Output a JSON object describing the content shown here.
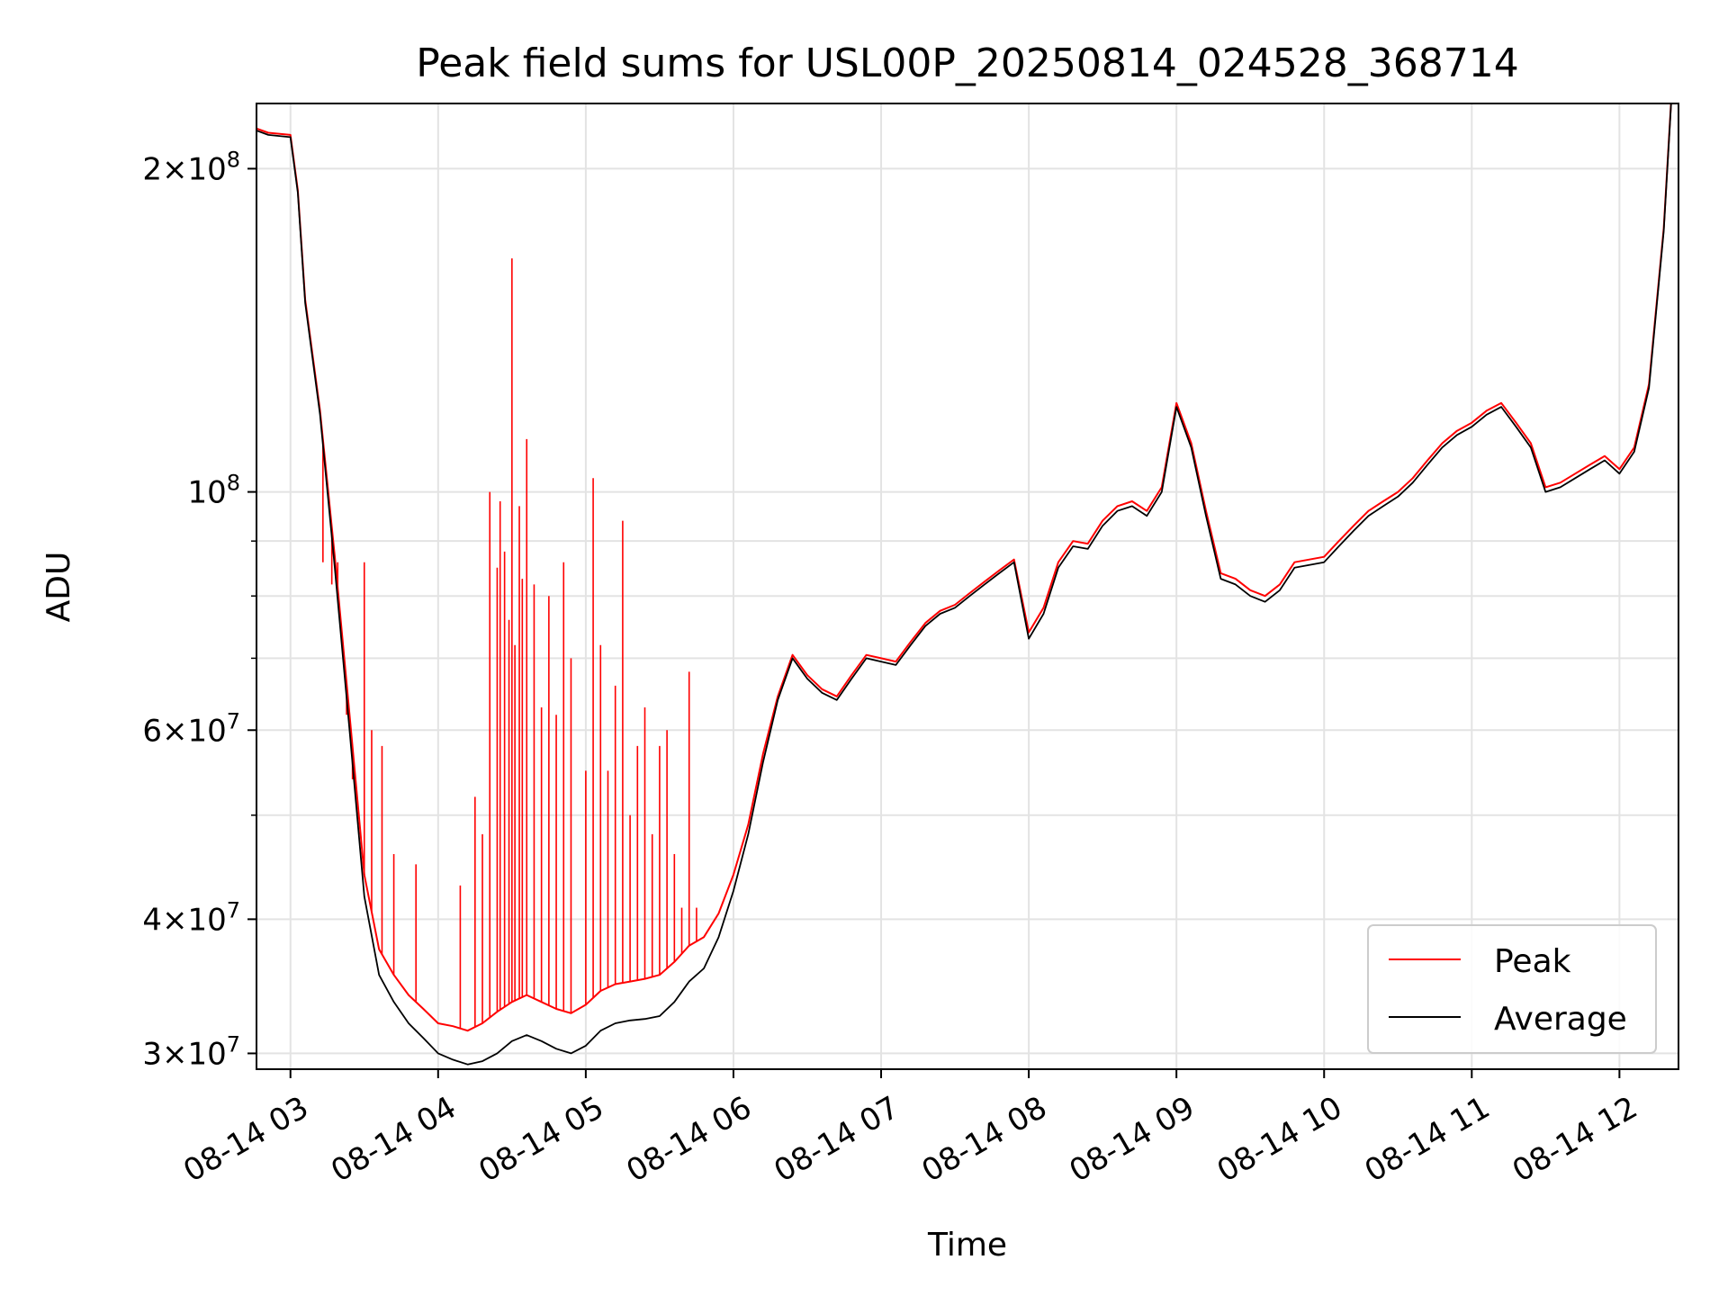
{
  "chart_data": {
    "type": "line",
    "title": "Peak field sums for USL00P_20250814_024528_368714",
    "xlabel": "Time",
    "ylabel": "ADU",
    "x_units": "hours (2025-08-14)",
    "xlim": [
      2.77,
      12.4
    ],
    "ylim": [
      29000000,
      230000000
    ],
    "y_scale": "log",
    "grid": true,
    "legend_position": "lower-right",
    "x_ticks": [
      {
        "value": 3,
        "label": "08-14 03"
      },
      {
        "value": 4,
        "label": "08-14 04"
      },
      {
        "value": 5,
        "label": "08-14 05"
      },
      {
        "value": 6,
        "label": "08-14 06"
      },
      {
        "value": 7,
        "label": "08-14 07"
      },
      {
        "value": 8,
        "label": "08-14 08"
      },
      {
        "value": 9,
        "label": "08-14 09"
      },
      {
        "value": 10,
        "label": "08-14 10"
      },
      {
        "value": 11,
        "label": "08-14 11"
      },
      {
        "value": 12,
        "label": "08-14 12"
      }
    ],
    "y_major_ticks": [
      {
        "value": 30000000,
        "mant": "3",
        "exp": "7"
      },
      {
        "value": 40000000,
        "mant": "4",
        "exp": "7"
      },
      {
        "value": 60000000,
        "mant": "6",
        "exp": "7"
      },
      {
        "value": 100000000,
        "mant": "",
        "exp": "8"
      },
      {
        "value": 200000000,
        "mant": "2",
        "exp": "8"
      }
    ],
    "y_minor_ticks": [
      50000000,
      70000000,
      80000000,
      90000000
    ],
    "series": [
      {
        "name": "Average",
        "color": "#000000",
        "x": [
          2.77,
          2.85,
          3.0,
          3.05,
          3.1,
          3.2,
          3.3,
          3.4,
          3.5,
          3.6,
          3.7,
          3.8,
          3.9,
          4.0,
          4.1,
          4.2,
          4.3,
          4.4,
          4.5,
          4.6,
          4.7,
          4.8,
          4.9,
          5.0,
          5.1,
          5.2,
          5.3,
          5.4,
          5.5,
          5.6,
          5.7,
          5.8,
          5.9,
          6.0,
          6.1,
          6.2,
          6.3,
          6.4,
          6.5,
          6.6,
          6.7,
          6.8,
          6.9,
          7.0,
          7.1,
          7.2,
          7.3,
          7.4,
          7.5,
          7.6,
          7.7,
          7.8,
          7.9,
          8.0,
          8.1,
          8.2,
          8.3,
          8.4,
          8.5,
          8.6,
          8.7,
          8.8,
          8.9,
          9.0,
          9.1,
          9.2,
          9.3,
          9.4,
          9.5,
          9.6,
          9.7,
          9.8,
          9.9,
          10.0,
          10.1,
          10.2,
          10.3,
          10.4,
          10.5,
          10.6,
          10.7,
          10.8,
          10.9,
          11.0,
          11.1,
          11.2,
          11.3,
          11.4,
          11.5,
          11.6,
          11.7,
          11.8,
          11.9,
          12.0,
          12.1,
          12.2,
          12.3,
          12.35
        ],
        "y": [
          217000000,
          215000000,
          214000000,
          190000000,
          150000000,
          118000000,
          85000000,
          60000000,
          42000000,
          35500000,
          33500000,
          32000000,
          31000000,
          30000000,
          29600000,
          29300000,
          29500000,
          30000000,
          30800000,
          31200000,
          30800000,
          30300000,
          30000000,
          30500000,
          31500000,
          32000000,
          32200000,
          32300000,
          32500000,
          33500000,
          35000000,
          36000000,
          38500000,
          42500000,
          48000000,
          56000000,
          64000000,
          70000000,
          67000000,
          65000000,
          64000000,
          67000000,
          70000000,
          69500000,
          69000000,
          72000000,
          75000000,
          77000000,
          78000000,
          80000000,
          82000000,
          84000000,
          86000000,
          73000000,
          77000000,
          85000000,
          89000000,
          88500000,
          93000000,
          96000000,
          97000000,
          95000000,
          100000000,
          120000000,
          110000000,
          95000000,
          83000000,
          82000000,
          80000000,
          79000000,
          81000000,
          85000000,
          85500000,
          86000000,
          89000000,
          92000000,
          95000000,
          97000000,
          99000000,
          102000000,
          106000000,
          110000000,
          113000000,
          115000000,
          118000000,
          120000000,
          115000000,
          110000000,
          100000000,
          101000000,
          103000000,
          105000000,
          107000000,
          104000000,
          109000000,
          125000000,
          175000000,
          230000000
        ]
      },
      {
        "name": "Peak",
        "color": "#ff0000",
        "x": [
          2.77,
          2.85,
          3.0,
          3.05,
          3.1,
          3.2,
          3.3,
          3.4,
          3.5,
          3.6,
          3.7,
          3.8,
          3.9,
          4.0,
          4.1,
          4.2,
          4.3,
          4.4,
          4.5,
          4.6,
          4.7,
          4.8,
          4.9,
          5.0,
          5.1,
          5.2,
          5.3,
          5.4,
          5.5,
          5.6,
          5.7,
          5.8,
          5.9,
          6.0,
          6.1,
          6.2,
          6.3,
          6.4,
          6.5,
          6.6,
          6.7,
          6.8,
          6.9,
          7.0,
          7.1,
          7.2,
          7.3,
          7.4,
          7.5,
          7.6,
          7.7,
          7.8,
          7.9,
          8.0,
          8.1,
          8.2,
          8.3,
          8.4,
          8.5,
          8.6,
          8.7,
          8.8,
          8.9,
          9.0,
          9.1,
          9.2,
          9.3,
          9.4,
          9.5,
          9.6,
          9.7,
          9.8,
          9.9,
          10.0,
          10.1,
          10.2,
          10.3,
          10.4,
          10.5,
          10.6,
          10.7,
          10.8,
          10.9,
          11.0,
          11.1,
          11.2,
          11.3,
          11.4,
          11.5,
          11.6,
          11.7,
          11.8,
          11.9,
          12.0,
          12.1,
          12.2,
          12.3,
          12.35
        ],
        "y": [
          218000000,
          216000000,
          215000000,
          191000000,
          151000000,
          119000000,
          87000000,
          62000000,
          44000000,
          37500000,
          35500000,
          34000000,
          33000000,
          32000000,
          31800000,
          31500000,
          32000000,
          32800000,
          33500000,
          34000000,
          33500000,
          33000000,
          32700000,
          33300000,
          34300000,
          34800000,
          35000000,
          35200000,
          35500000,
          36500000,
          37800000,
          38500000,
          40500000,
          44000000,
          49000000,
          57000000,
          64500000,
          70500000,
          67500000,
          65500000,
          64500000,
          67500000,
          70500000,
          70000000,
          69500000,
          72500000,
          75500000,
          77500000,
          78500000,
          80500000,
          82500000,
          84500000,
          86500000,
          74000000,
          78000000,
          86000000,
          90000000,
          89500000,
          94000000,
          97000000,
          98000000,
          96000000,
          101000000,
          121000000,
          111000000,
          96000000,
          84000000,
          83000000,
          81000000,
          80000000,
          82000000,
          86000000,
          86500000,
          87000000,
          90000000,
          93000000,
          96000000,
          98000000,
          100000000,
          103000000,
          107000000,
          111000000,
          114000000,
          116000000,
          119000000,
          121000000,
          116000000,
          111000000,
          101000000,
          102000000,
          104000000,
          106000000,
          108000000,
          105000000,
          110000000,
          126000000,
          176000000,
          231000000
        ]
      },
      {
        "name": "Peak spikes",
        "color": "#ff0000",
        "x": [
          3.22,
          3.28,
          3.32,
          3.38,
          3.42,
          3.5,
          3.55,
          3.62,
          3.7,
          3.85,
          4.15,
          4.25,
          4.3,
          4.35,
          4.4,
          4.42,
          4.45,
          4.48,
          4.5,
          4.52,
          4.55,
          4.57,
          4.6,
          4.65,
          4.7,
          4.75,
          4.8,
          4.85,
          4.9,
          5.0,
          5.05,
          5.1,
          5.15,
          5.2,
          5.25,
          5.3,
          5.35,
          5.4,
          5.45,
          5.5,
          5.55,
          5.6,
          5.65,
          5.7,
          5.75
        ],
        "y": [
          86000000,
          82000000,
          86000000,
          62000000,
          54000000,
          86000000,
          60000000,
          58000000,
          46000000,
          45000000,
          43000000,
          52000000,
          48000000,
          100000000,
          85000000,
          98000000,
          88000000,
          76000000,
          165000000,
          72000000,
          97000000,
          83000000,
          112000000,
          82000000,
          63000000,
          80000000,
          62000000,
          86000000,
          70000000,
          55000000,
          103000000,
          72000000,
          55000000,
          66000000,
          94000000,
          50000000,
          58000000,
          63000000,
          48000000,
          58000000,
          60000000,
          46000000,
          41000000,
          68000000,
          41000000
        ]
      }
    ]
  },
  "legend": {
    "items": [
      {
        "label": "Peak",
        "color": "#ff0000"
      },
      {
        "label": "Average",
        "color": "#000000"
      }
    ]
  }
}
